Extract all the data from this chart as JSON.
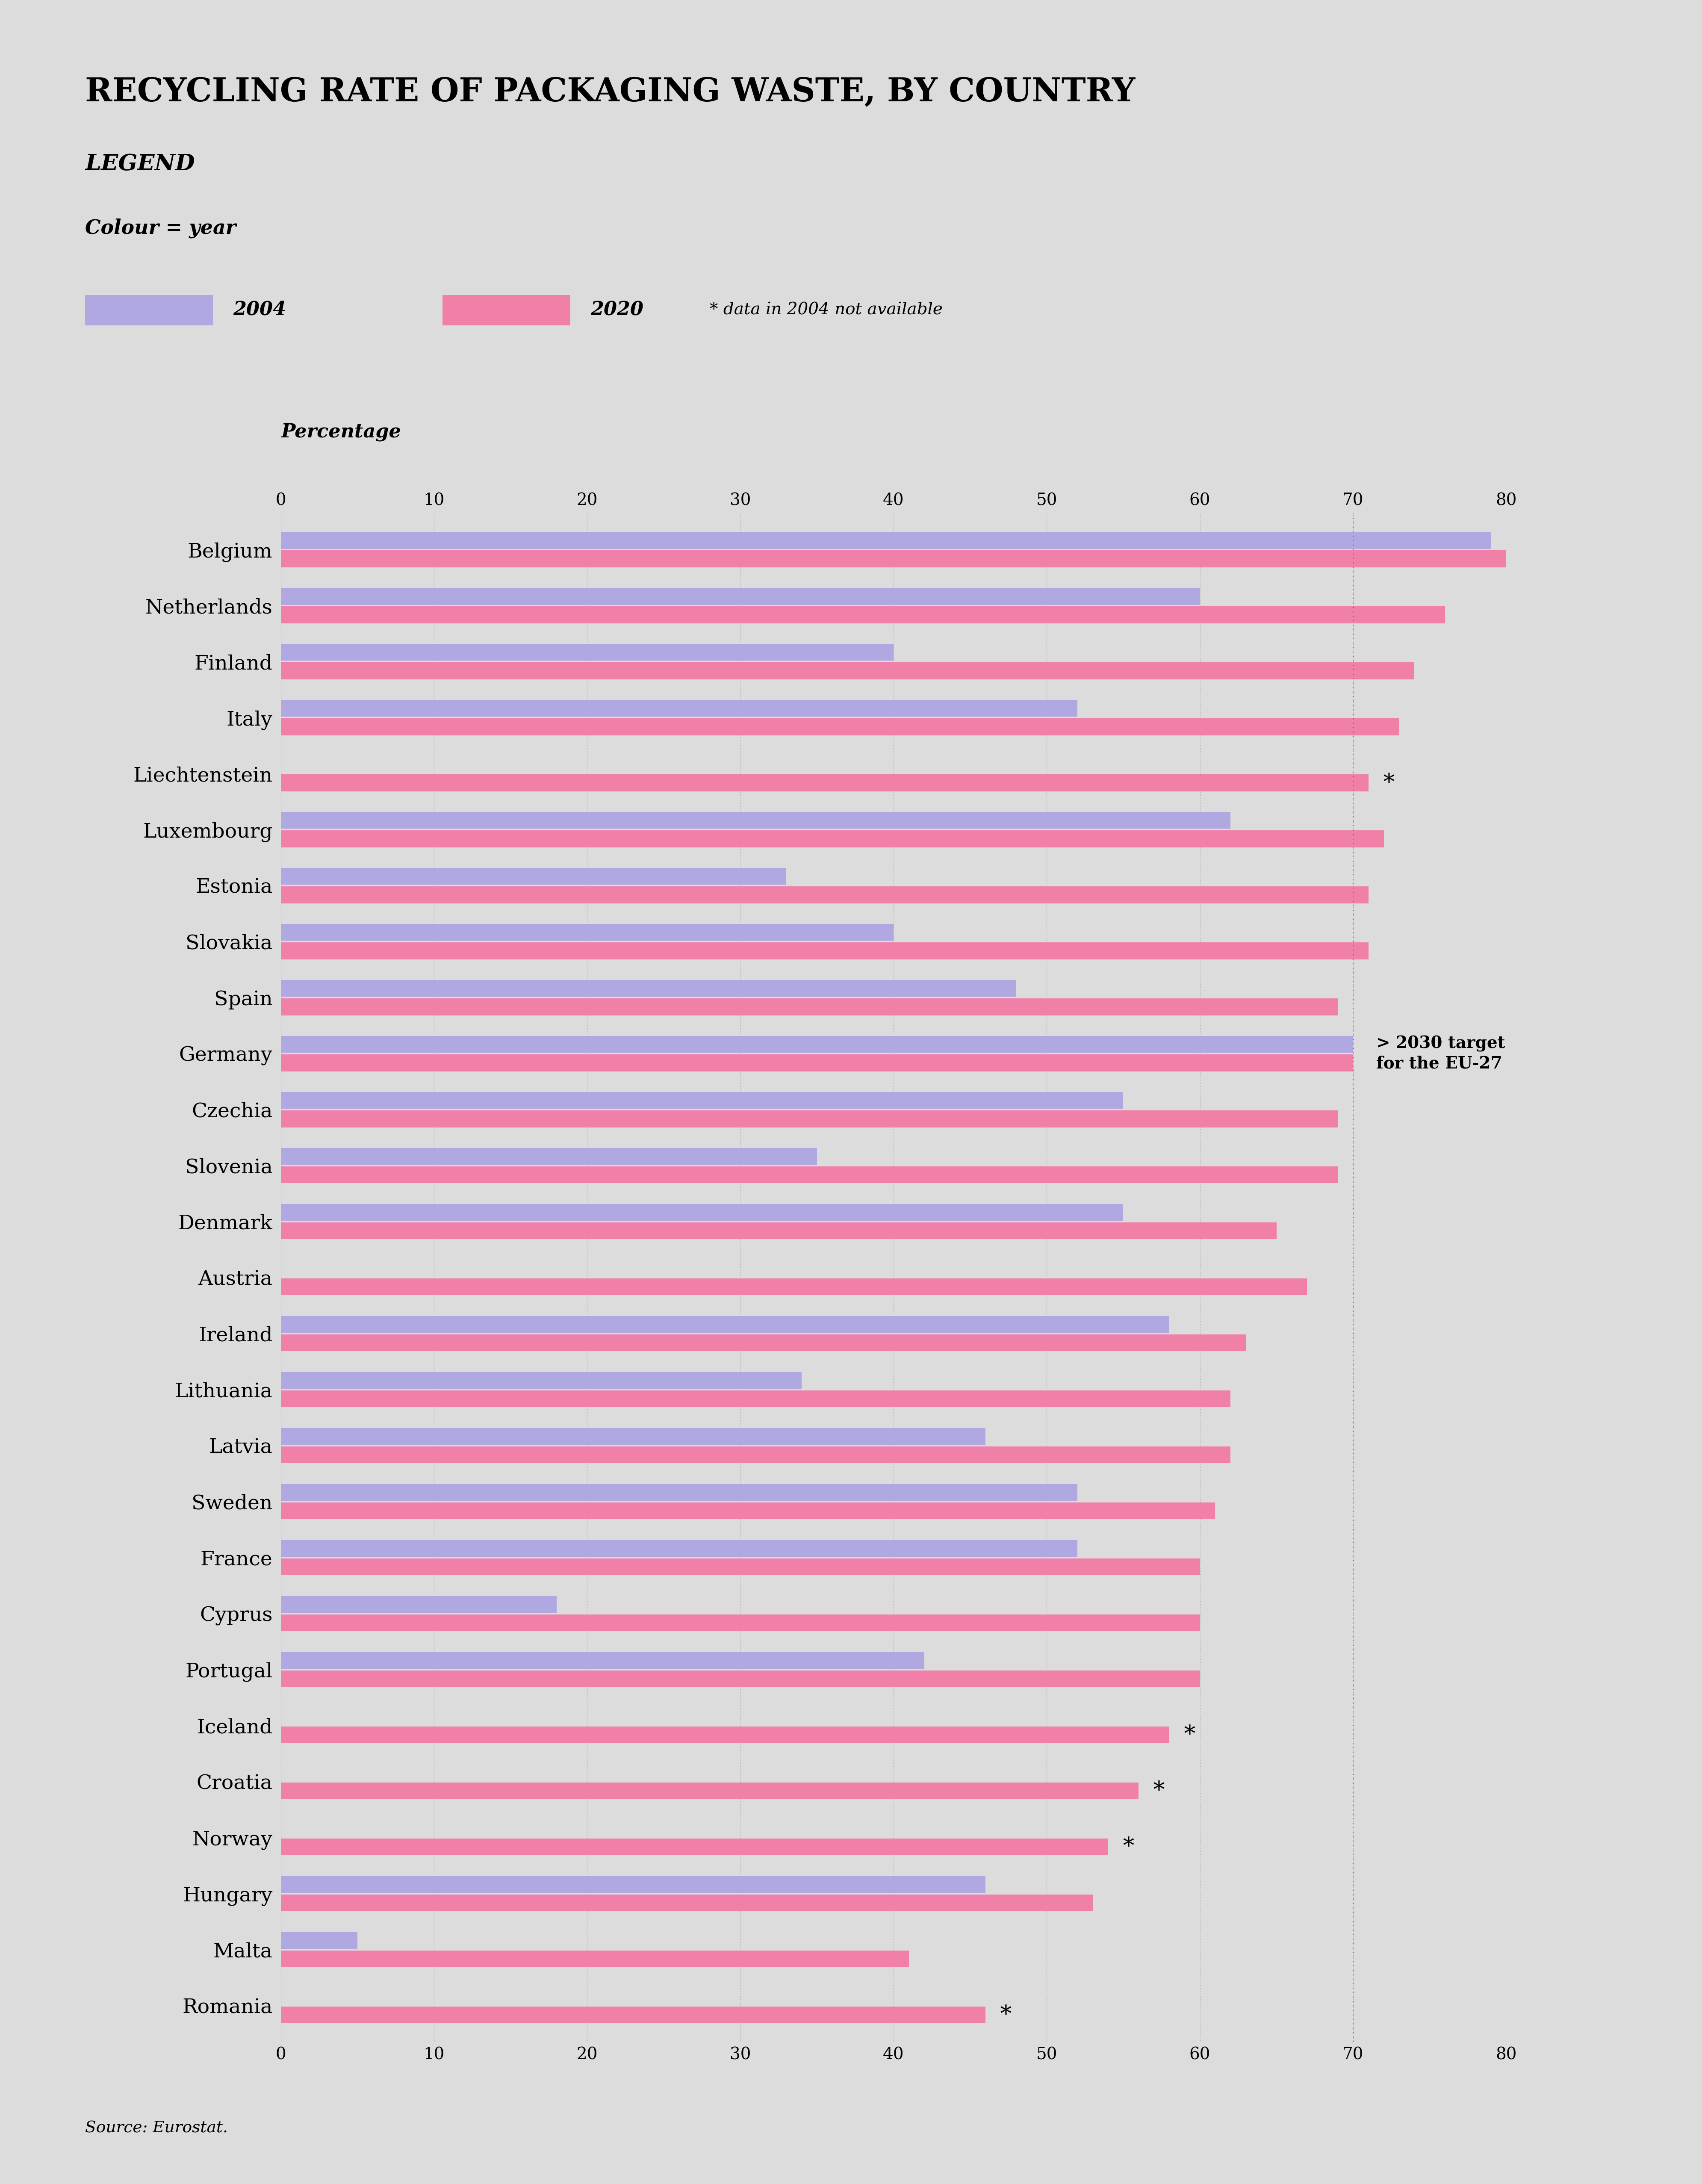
{
  "title": "RECYCLING RATE OF PACKAGING WASTE, BY COUNTRY",
  "background_color": "#dcdcdc",
  "color_2004": "#b0a8e0",
  "color_2020": "#f080a8",
  "target_line_x": 70,
  "xlim": [
    0,
    80
  ],
  "xticks": [
    0,
    10,
    20,
    30,
    40,
    50,
    60,
    70,
    80
  ],
  "countries": [
    "Belgium",
    "Netherlands",
    "Finland",
    "Italy",
    "Liechtenstein",
    "Luxembourg",
    "Estonia",
    "Slovakia",
    "Spain",
    "Germany",
    "Czechia",
    "Slovenia",
    "Denmark",
    "Austria",
    "Ireland",
    "Lithuania",
    "Latvia",
    "Sweden",
    "France",
    "Cyprus",
    "Portugal",
    "Iceland",
    "Croatia",
    "Norway",
    "Hungary",
    "Malta",
    "Romania"
  ],
  "values_2004": [
    79,
    60,
    40,
    52,
    null,
    62,
    33,
    40,
    48,
    70,
    55,
    35,
    55,
    null,
    58,
    34,
    46,
    52,
    52,
    18,
    42,
    null,
    null,
    null,
    46,
    5,
    null
  ],
  "values_2020": [
    81,
    76,
    74,
    73,
    71,
    72,
    71,
    71,
    69,
    70,
    69,
    69,
    65,
    67,
    63,
    62,
    62,
    61,
    60,
    60,
    60,
    58,
    56,
    54,
    53,
    41,
    46
  ],
  "star_indices": [
    4,
    21,
    22,
    23,
    26
  ],
  "target_label_line1": "> 2030 target",
  "target_label_line2": "for the EU-27",
  "source_text": "Source: Eurostat."
}
